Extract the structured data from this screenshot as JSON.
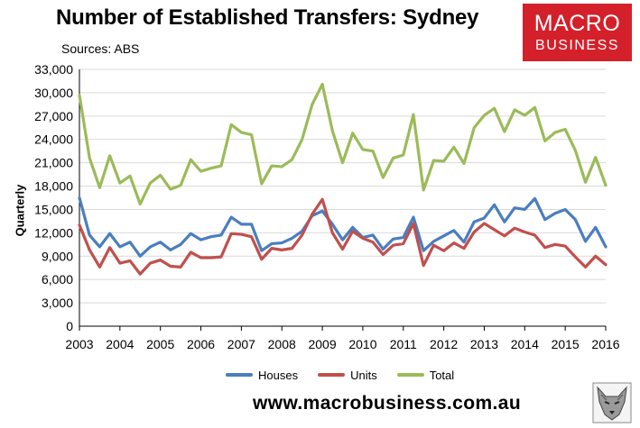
{
  "title": "Number of Established Transfers: Sydney",
  "source": "Sources: ABS",
  "logo": {
    "line1": "MACRO",
    "line2": "BUSINESS",
    "color": "#d4202a"
  },
  "website": "www.macrobusiness.com.au",
  "chart_data": {
    "type": "line",
    "title": "Number of Established Transfers: Sydney",
    "ylabel": "Quarterly",
    "xlabel": "",
    "ylim": [
      0,
      33000
    ],
    "yticks": [
      "0",
      "3,000",
      "6,000",
      "9,000",
      "12,000",
      "15,000",
      "18,000",
      "21,000",
      "24,000",
      "27,000",
      "30,000",
      "33,000"
    ],
    "xlim": [
      2003,
      2016
    ],
    "xticks": [
      "2003",
      "2004",
      "2005",
      "2006",
      "2007",
      "2008",
      "2009",
      "2010",
      "2011",
      "2012",
      "2013",
      "2014",
      "2015",
      "2016"
    ],
    "grid": true,
    "legend_position": "bottom",
    "x": [
      2003.0,
      2003.25,
      2003.5,
      2003.75,
      2004.0,
      2004.25,
      2004.5,
      2004.75,
      2005.0,
      2005.25,
      2005.5,
      2005.75,
      2006.0,
      2006.25,
      2006.5,
      2006.75,
      2007.0,
      2007.25,
      2007.5,
      2007.75,
      2008.0,
      2008.25,
      2008.5,
      2008.75,
      2009.0,
      2009.25,
      2009.5,
      2009.75,
      2010.0,
      2010.25,
      2010.5,
      2010.75,
      2011.0,
      2011.25,
      2011.5,
      2011.75,
      2012.0,
      2012.25,
      2012.5,
      2012.75,
      2013.0,
      2013.25,
      2013.5,
      2013.75,
      2014.0,
      2014.25,
      2014.5,
      2014.75,
      2015.0,
      2015.25,
      2015.5,
      2015.75,
      2016.0
    ],
    "series": [
      {
        "name": "Houses",
        "color": "#4a7ebf",
        "values": [
          16500,
          11700,
          10200,
          11900,
          10200,
          10800,
          9000,
          10200,
          10800,
          9800,
          10500,
          11900,
          11100,
          11500,
          11700,
          14000,
          13100,
          13100,
          9700,
          10600,
          10700,
          11300,
          12200,
          14200,
          14800,
          13100,
          11100,
          12700,
          11400,
          11700,
          9900,
          11200,
          11400,
          14000,
          9700,
          10900,
          11600,
          12300,
          10800,
          13400,
          13900,
          15600,
          13400,
          15200,
          15000,
          16400,
          13700,
          14500,
          15000,
          13700,
          10900,
          12700,
          10200
        ]
      },
      {
        "name": "Units",
        "color": "#c0504d",
        "values": [
          13000,
          9800,
          7600,
          10100,
          8100,
          8400,
          6700,
          8100,
          8500,
          7700,
          7600,
          9500,
          8800,
          8800,
          8900,
          11900,
          11800,
          11500,
          8600,
          10000,
          9800,
          10000,
          11700,
          14400,
          16300,
          12000,
          9900,
          12200,
          11300,
          10800,
          9200,
          10400,
          10600,
          13200,
          7800,
          10400,
          9700,
          10700,
          10000,
          12100,
          13200,
          12400,
          11600,
          12600,
          12100,
          11700,
          10100,
          10500,
          10300,
          8900,
          7600,
          9000,
          7900
        ]
      },
      {
        "name": "Total",
        "color": "#9bbb59",
        "values": [
          29700,
          21600,
          17800,
          21900,
          18400,
          19300,
          15700,
          18400,
          19400,
          17600,
          18100,
          21400,
          19900,
          20300,
          20600,
          25900,
          24900,
          24600,
          18300,
          20600,
          20500,
          21400,
          24000,
          28500,
          31100,
          25100,
          21000,
          24800,
          22700,
          22500,
          19100,
          21600,
          22000,
          27200,
          17500,
          21300,
          21200,
          23000,
          20900,
          25500,
          27100,
          28000,
          25000,
          27800,
          27100,
          28100,
          23800,
          24900,
          25300,
          22600,
          18500,
          21700,
          18100
        ]
      }
    ]
  }
}
